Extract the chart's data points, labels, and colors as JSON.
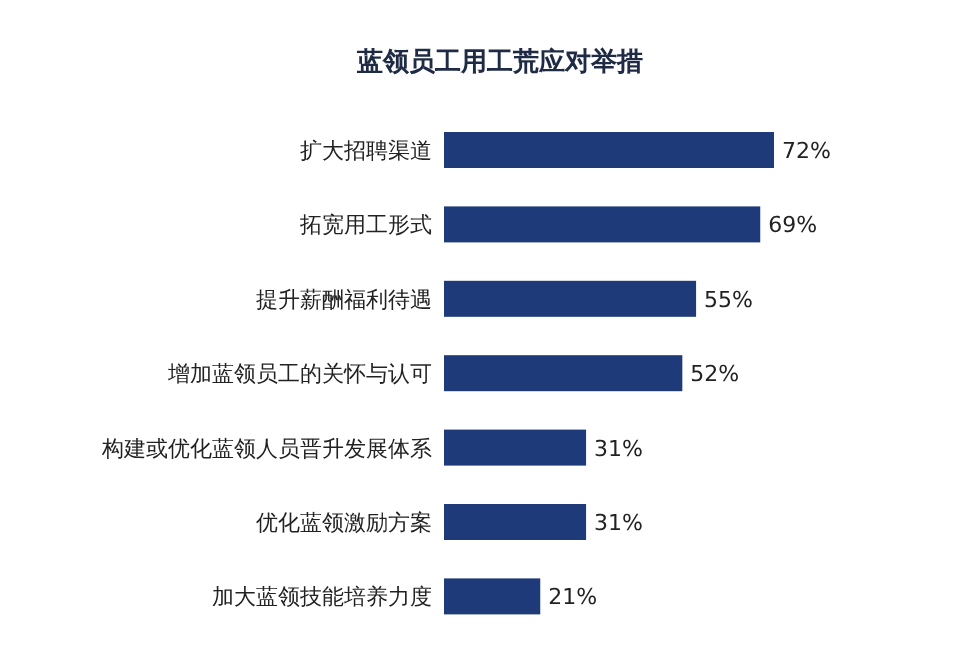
{
  "chart_data": {
    "type": "bar",
    "orientation": "horizontal",
    "title": "蓝领员工用工荒应对举措",
    "categories": [
      "扩大招聘渠道",
      "拓宽用工形式",
      "提升薪酬福利待遇",
      "增加蓝领员工的关怀与认可",
      "构建或优化蓝领人员晋升发展体系",
      "优化蓝领激励方案",
      "加大蓝领技能培养力度"
    ],
    "values": [
      72,
      69,
      55,
      52,
      31,
      31,
      21
    ],
    "value_labels": [
      "72%",
      "69%",
      "55%",
      "52%",
      "31%",
      "31%",
      "21%"
    ],
    "color": "#1f3a78"
  }
}
